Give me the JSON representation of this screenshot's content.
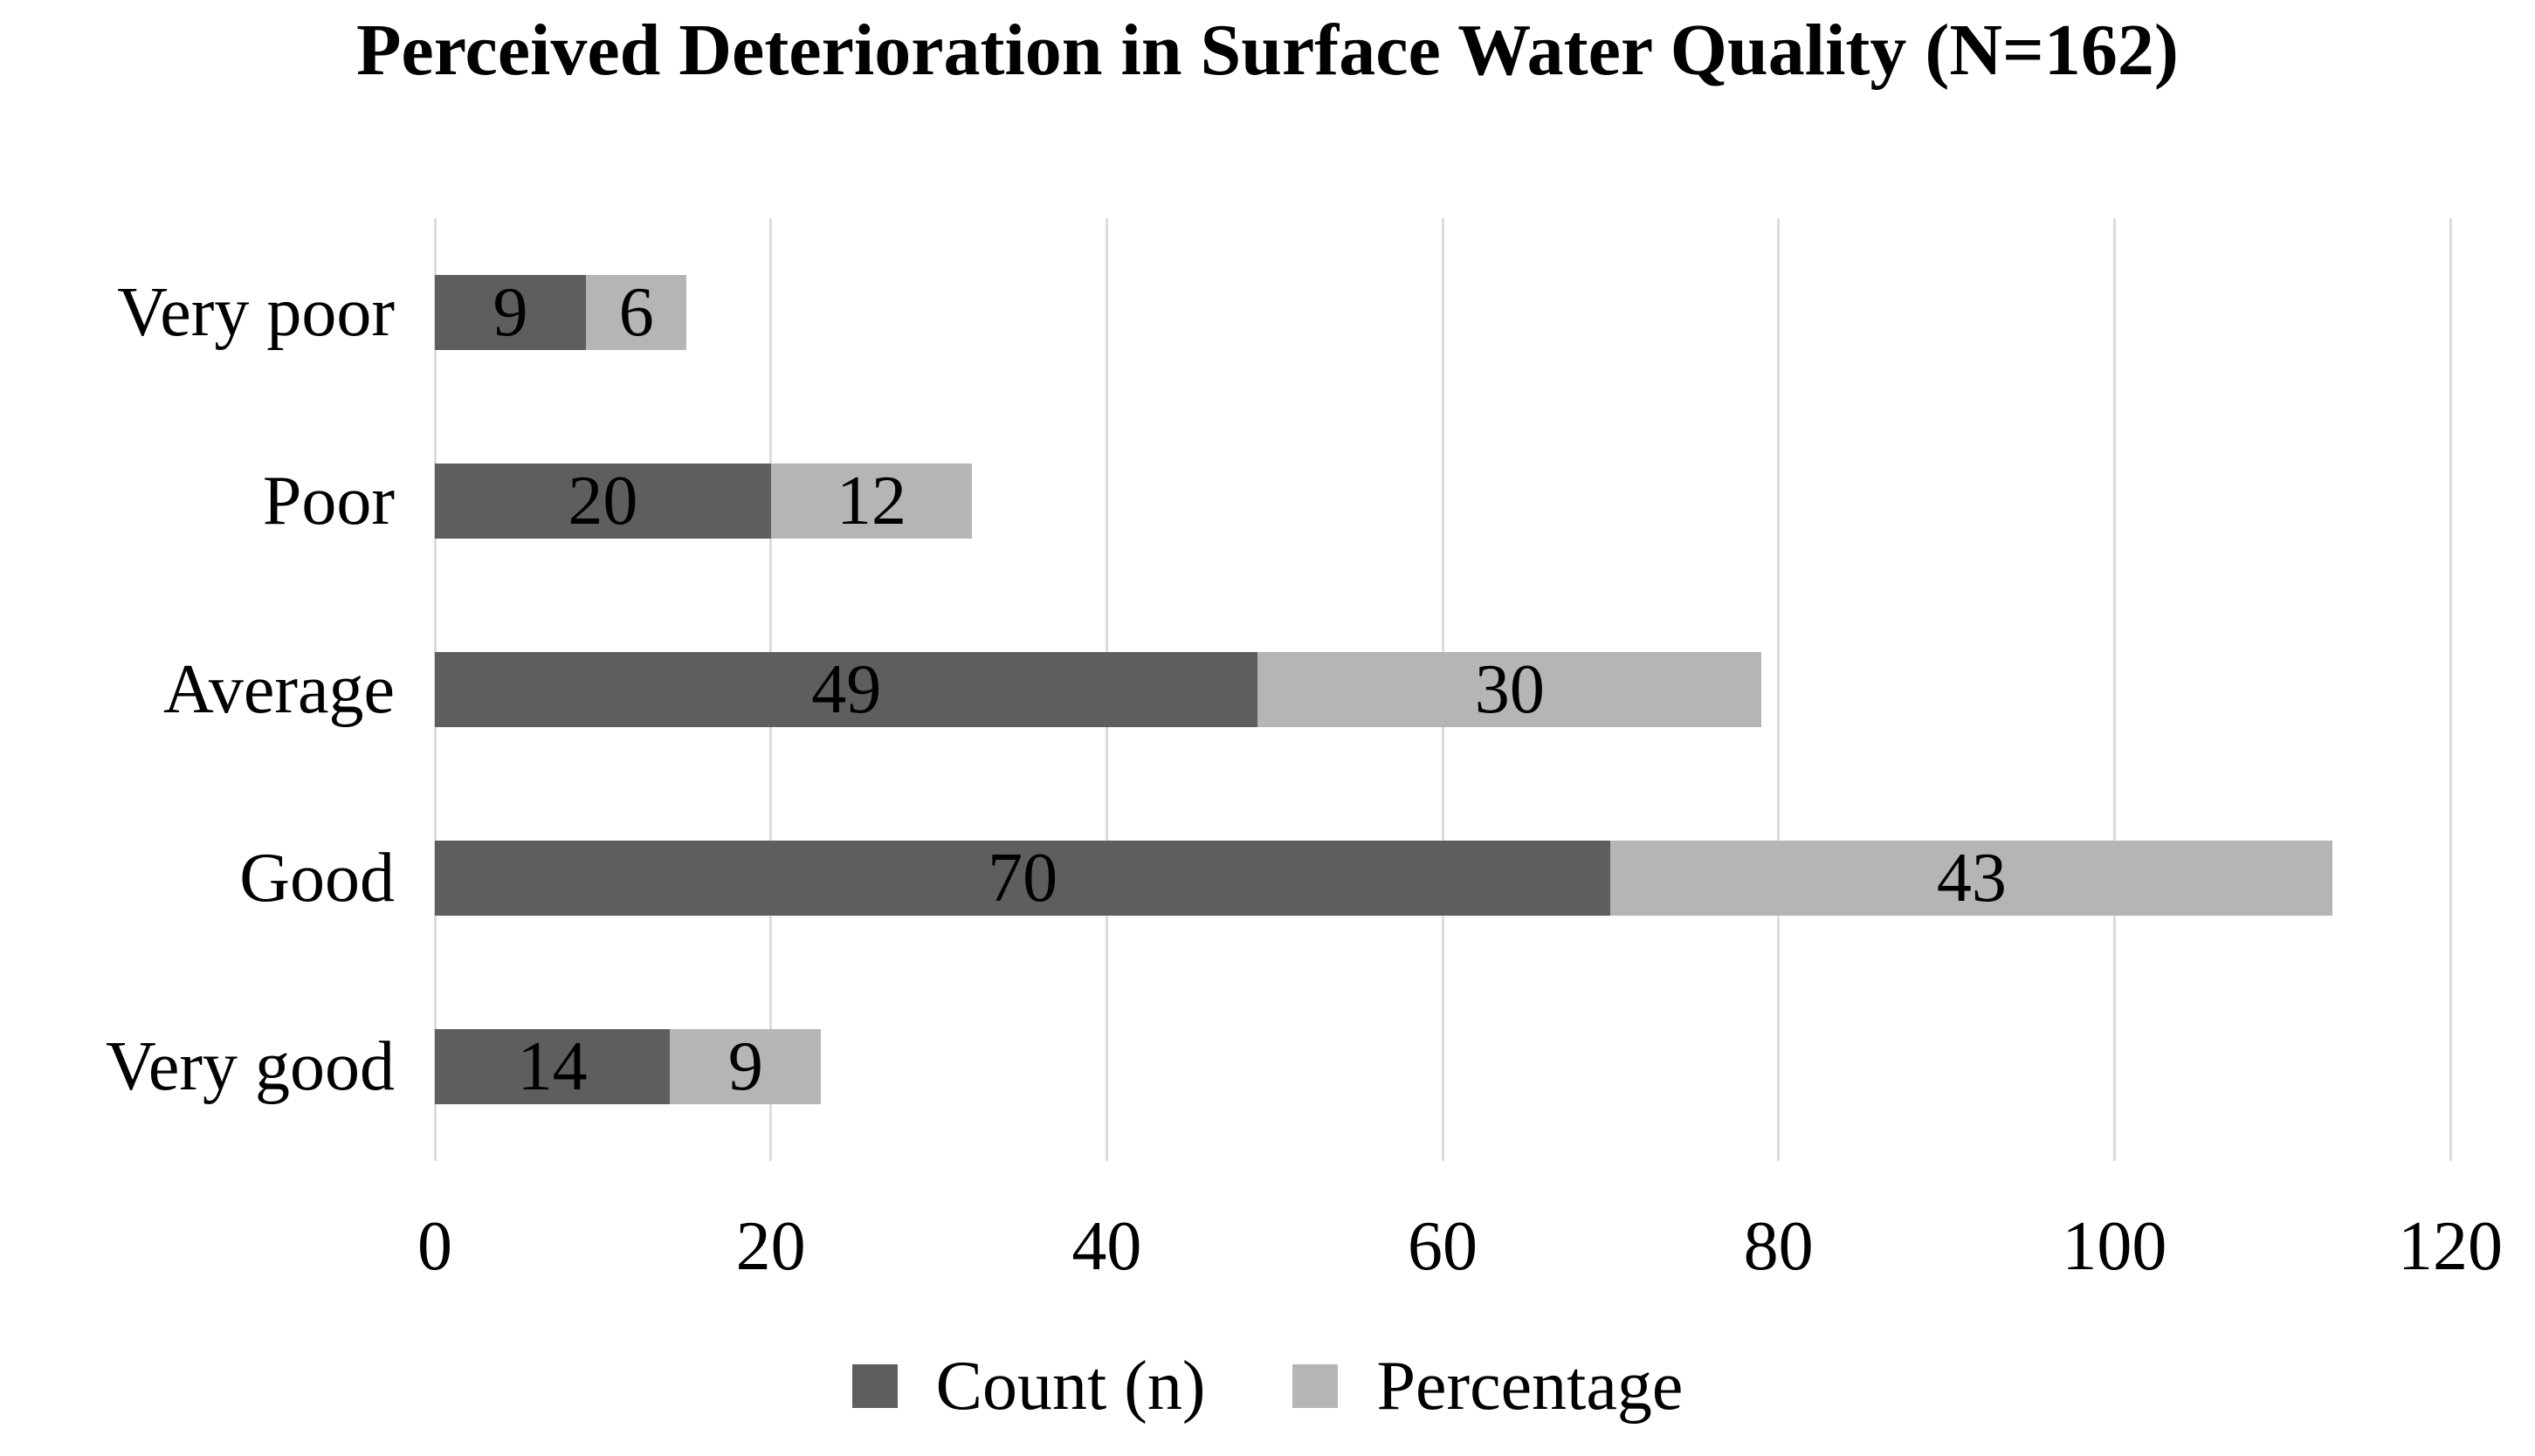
{
  "title": "Perceived Deterioration in Surface Water Quality (N=162)",
  "colors": {
    "count_series": "#5e5e5e",
    "percentage_series": "#b5b5b5",
    "gridline": "#dcdcdc",
    "text": "#000000",
    "background": "#ffffff"
  },
  "legend": {
    "items": [
      {
        "label": "Count (n)",
        "color": "#5e5e5e"
      },
      {
        "label": "Percentage",
        "color": "#b5b5b5"
      }
    ]
  },
  "chart_data": {
    "type": "bar",
    "orientation": "horizontal",
    "stacked": true,
    "title": "Perceived Deterioration in Surface Water Quality (N=162)",
    "categories": [
      "Very poor",
      "Poor",
      "Average",
      "Good",
      "Very good"
    ],
    "category_order": "top-to-bottom",
    "series": [
      {
        "name": "Count (n)",
        "color": "#5e5e5e",
        "values": [
          9,
          20,
          49,
          70,
          14
        ]
      },
      {
        "name": "Percentage",
        "color": "#b5b5b5",
        "values": [
          6,
          12,
          30,
          43,
          9
        ]
      }
    ],
    "totals": [
      15,
      32,
      79,
      113,
      23
    ],
    "xlabel": "",
    "ylabel": "",
    "xlim": [
      0,
      120
    ],
    "x_ticks": [
      0,
      20,
      40,
      60,
      80,
      100,
      120
    ],
    "grid": true,
    "gridlines": "vertical",
    "legend_position": "bottom",
    "data_labels": "inside-center"
  }
}
